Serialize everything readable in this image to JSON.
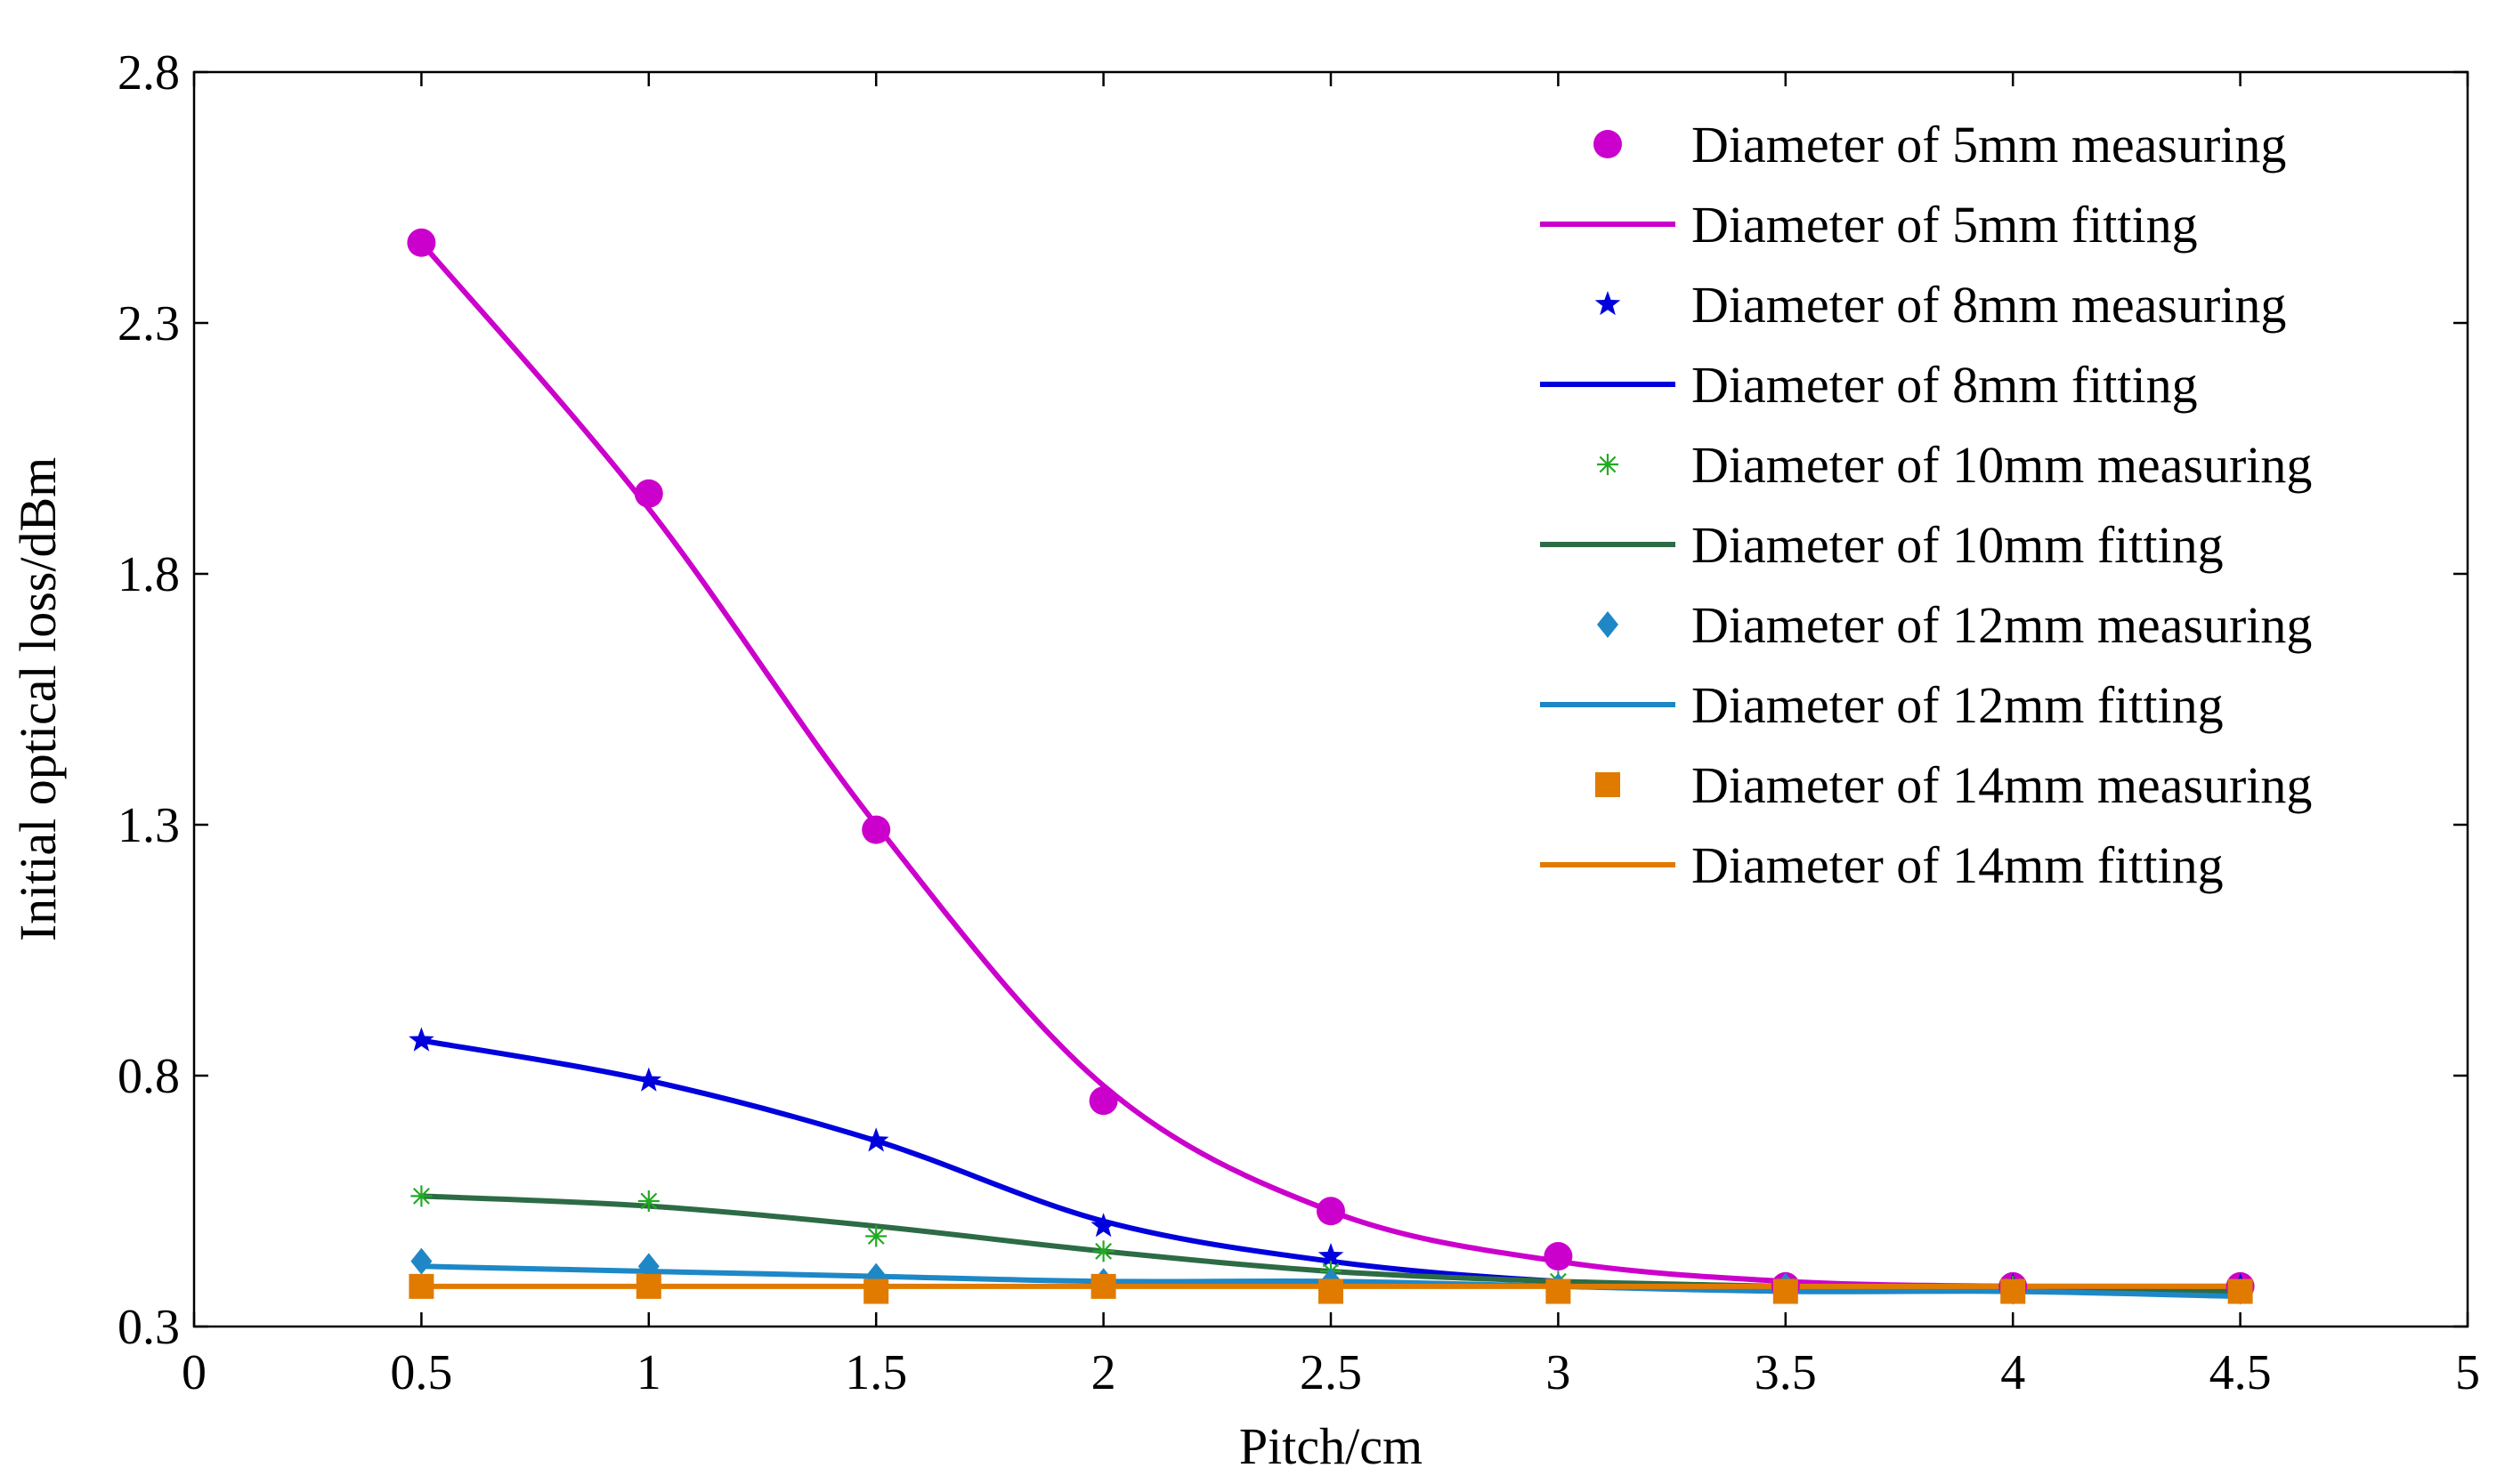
{
  "chart_data": {
    "type": "line",
    "title": "",
    "xlabel": "Pitch/cm",
    "ylabel": "Initial optical loss/dBm",
    "xlim": [
      0,
      5
    ],
    "ylim": [
      0.3,
      2.8
    ],
    "xticks": [
      0,
      0.5,
      1,
      1.5,
      2,
      2.5,
      3,
      3.5,
      4,
      4.5,
      5
    ],
    "xtick_labels": [
      "0",
      "0.5",
      "1",
      "1.5",
      "2",
      "2.5",
      "3",
      "3.5",
      "4",
      "4.5",
      "5"
    ],
    "yticks": [
      0.3,
      0.8,
      1.3,
      1.8,
      2.3,
      2.8
    ],
    "ytick_labels": [
      "0.3",
      "0.8",
      "1.3",
      "1.8",
      "2.3",
      "2.8"
    ],
    "grid": false,
    "legend_position": "top-right",
    "x": [
      0.5,
      1,
      1.5,
      2,
      2.5,
      3,
      3.5,
      4,
      4.5
    ],
    "series": [
      {
        "name": "Diameter of 5mm measuring",
        "kind": "marker",
        "marker": "circle",
        "color": "#cc00cc",
        "values": [
          2.46,
          1.96,
          1.29,
          0.75,
          0.53,
          0.44,
          0.38,
          0.38,
          0.38
        ]
      },
      {
        "name": "Diameter of 5mm fitting",
        "kind": "line",
        "color": "#cc00cc",
        "values": [
          2.46,
          1.93,
          1.3,
          0.78,
          0.53,
          0.43,
          0.39,
          0.38,
          0.38
        ]
      },
      {
        "name": "Diameter of 8mm measuring",
        "kind": "marker",
        "marker": "star",
        "color": "#0000dd",
        "values": [
          0.87,
          0.79,
          0.67,
          0.5,
          0.44,
          0.38,
          0.38,
          0.38,
          0.38
        ]
      },
      {
        "name": "Diameter of 8mm fitting",
        "kind": "line",
        "color": "#0000dd",
        "values": [
          0.87,
          0.79,
          0.67,
          0.51,
          0.43,
          0.39,
          0.38,
          0.38,
          0.38
        ]
      },
      {
        "name": "Diameter of 10mm measuring",
        "kind": "marker",
        "marker": "asterisk",
        "color": "#22aa22",
        "values": [
          0.56,
          0.55,
          0.48,
          0.45,
          0.41,
          0.39,
          0.38,
          0.38,
          0.37
        ]
      },
      {
        "name": "Diameter of 10mm fitting",
        "kind": "line",
        "color": "#2d6b45",
        "values": [
          0.56,
          0.54,
          0.5,
          0.45,
          0.41,
          0.39,
          0.38,
          0.37,
          0.37
        ]
      },
      {
        "name": "Diameter of 12mm measuring",
        "kind": "marker",
        "marker": "diamond",
        "color": "#1e88c7",
        "values": [
          0.43,
          0.42,
          0.4,
          0.39,
          0.39,
          0.38,
          0.38,
          0.37,
          0.37
        ]
      },
      {
        "name": "Diameter of 12mm fitting",
        "kind": "line",
        "color": "#1e88c7",
        "values": [
          0.42,
          0.41,
          0.4,
          0.39,
          0.39,
          0.38,
          0.37,
          0.37,
          0.36
        ]
      },
      {
        "name": "Diameter of 14mm measuring",
        "kind": "marker",
        "marker": "square",
        "color": "#e07b00",
        "values": [
          0.38,
          0.38,
          0.37,
          0.38,
          0.37,
          0.37,
          0.37,
          0.37,
          0.37
        ]
      },
      {
        "name": "Diameter of 14mm fitting",
        "kind": "line",
        "color": "#e07b00",
        "values": [
          0.38,
          0.38,
          0.38,
          0.38,
          0.38,
          0.38,
          0.38,
          0.38,
          0.38
        ]
      }
    ]
  }
}
